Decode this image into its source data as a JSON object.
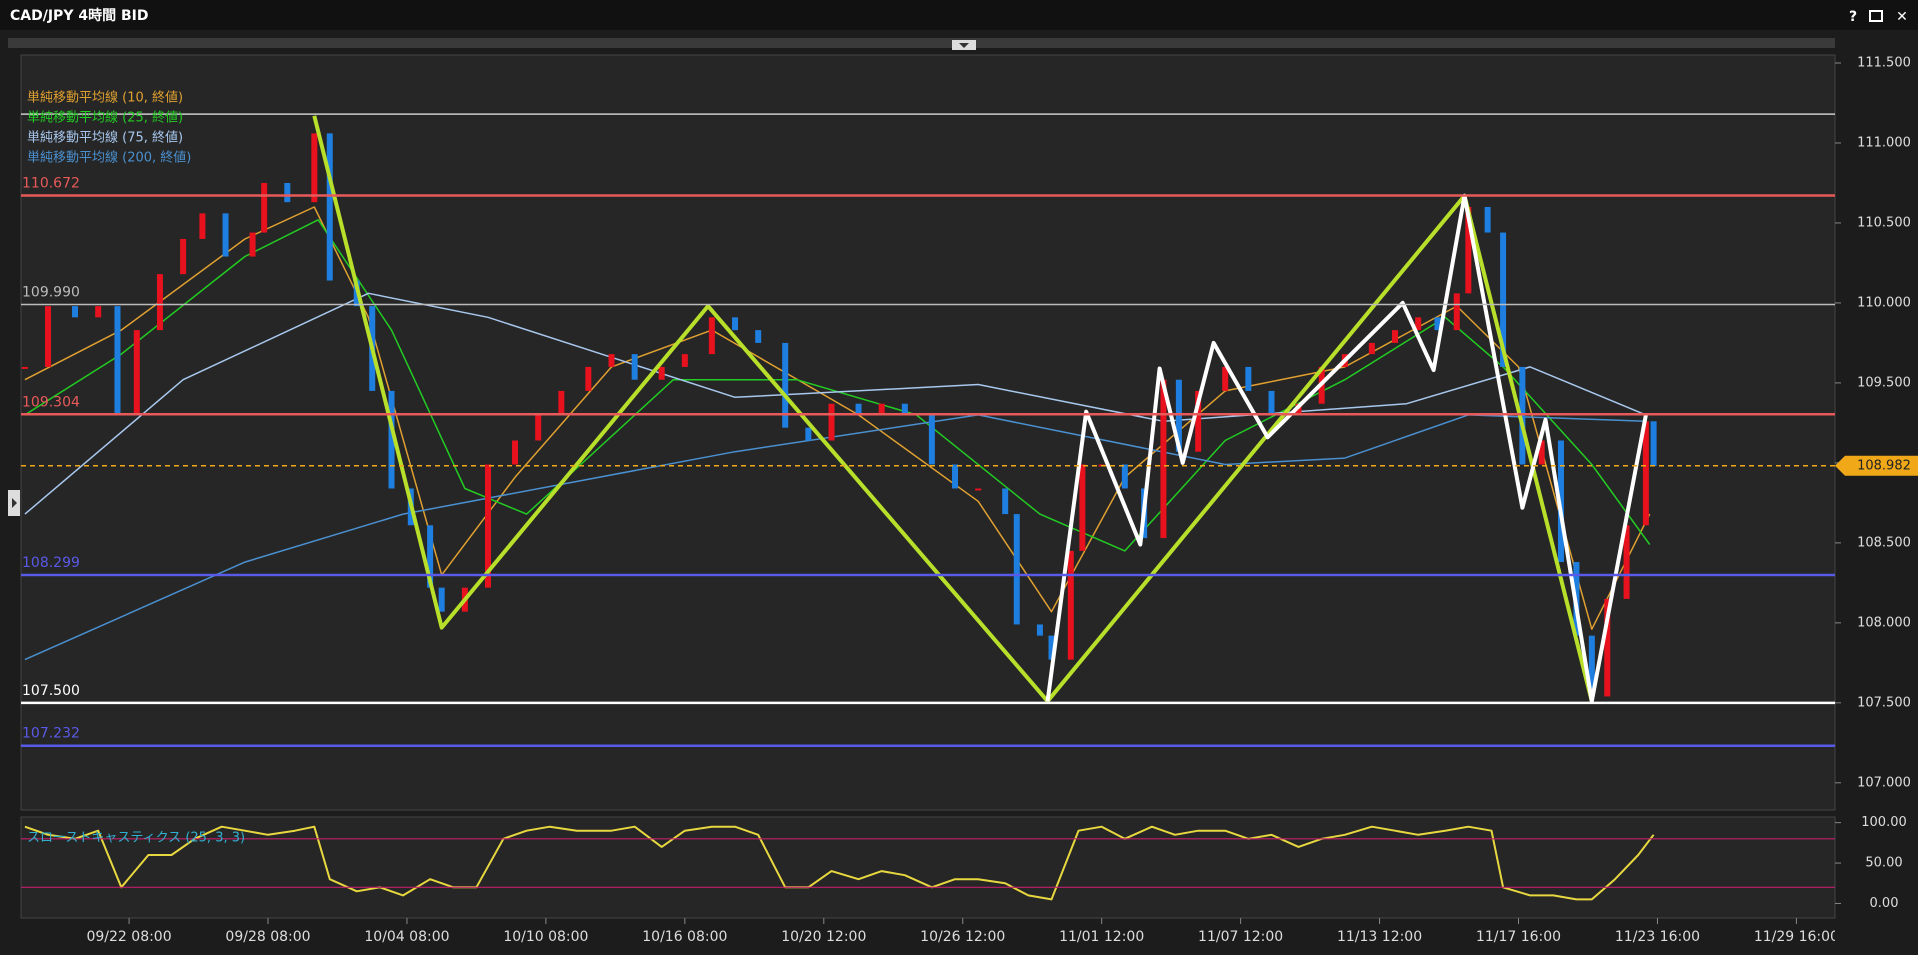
{
  "window": {
    "controls": [
      "?",
      "✕"
    ]
  },
  "chart_data": [
    {
      "type": "candlestick",
      "title": "CAD/JPY 4時間 BID",
      "xlim": [
        8,
        478
      ],
      "ylim": [
        106.83,
        111.55
      ],
      "xticks": [
        {
          "value": 36,
          "label": "09/22 08:00"
        },
        {
          "value": 72,
          "label": "09/28 08:00"
        },
        {
          "value": 108,
          "label": "10/04 08:00"
        },
        {
          "value": 144,
          "label": "10/10 08:00"
        },
        {
          "value": 180,
          "label": "10/16 08:00"
        },
        {
          "value": 216,
          "label": "10/20 12:00"
        },
        {
          "value": 252,
          "label": "10/26 12:00"
        },
        {
          "value": 288,
          "label": "11/01 12:00"
        },
        {
          "value": 324,
          "label": "11/07 12:00"
        },
        {
          "value": 360,
          "label": "11/13 12:00"
        },
        {
          "value": 396,
          "label": "11/17 16:00"
        },
        {
          "value": 432,
          "label": "11/23 16:00"
        },
        {
          "value": 468,
          "label": "11/29 16:00"
        }
      ],
      "yticks": [
        {
          "value": 107,
          "label": "107.000"
        },
        {
          "value": 107.5,
          "label": "107.500"
        },
        {
          "value": 108,
          "label": "108.000"
        },
        {
          "value": 108.5,
          "label": "108.500"
        },
        {
          "value": 109,
          "label": "109.000"
        },
        {
          "value": 109.5,
          "label": "109.500"
        },
        {
          "value": 110,
          "label": "110.000"
        },
        {
          "value": 110.5,
          "label": "110.500"
        },
        {
          "value": 111,
          "label": "111.000"
        },
        {
          "value": 111.5,
          "label": "111.500"
        }
      ],
      "up_color": "#e8121e",
      "down_color": "#1e7fe0",
      "x": [
        9,
        15,
        22,
        28,
        33,
        38,
        44,
        50,
        55,
        61,
        68,
        71,
        77,
        84,
        88,
        95,
        99,
        104,
        109,
        114,
        117,
        123,
        129,
        136,
        142,
        148,
        155,
        161,
        167,
        174,
        180,
        187,
        193,
        199,
        206,
        212,
        218,
        225,
        231,
        237,
        244,
        250,
        256,
        263,
        266,
        272,
        275,
        280,
        283,
        288,
        294,
        299,
        304,
        308,
        313,
        320,
        326,
        332,
        339,
        345,
        351,
        358,
        364,
        370,
        375,
        380,
        383,
        388,
        392,
        397,
        402,
        407,
        411,
        415,
        419,
        424,
        429,
        431
      ],
      "values": [
        109.6,
        109.98,
        109.91,
        109.98,
        109.3,
        109.83,
        110.18,
        110.4,
        110.56,
        110.29,
        110.44,
        110.75,
        110.63,
        111.06,
        110.14,
        109.98,
        109.45,
        108.84,
        108.61,
        108.22,
        108.07,
        108.22,
        108.99,
        109.14,
        109.3,
        109.45,
        109.6,
        109.68,
        109.52,
        109.6,
        109.68,
        109.91,
        109.83,
        109.75,
        109.22,
        109.14,
        109.37,
        109.3,
        109.37,
        109.3,
        108.99,
        108.84,
        108.84,
        108.68,
        107.99,
        107.92,
        107.77,
        108.45,
        108.99,
        108.99,
        108.84,
        108.53,
        109.52,
        109.07,
        109.45,
        109.6,
        109.45,
        109.3,
        109.37,
        109.6,
        109.68,
        109.75,
        109.83,
        109.91,
        109.83,
        110.06,
        110.6,
        110.44,
        109.6,
        108.99,
        109.14,
        108.38,
        107.92,
        107.54,
        108.15,
        108.61,
        109.26,
        108.98
      ],
      "series": [
        {
          "name": "単純移動平均線 (10, 終値)",
          "color": "#e0a030",
          "x": [
            9,
            34,
            66,
            84,
            98,
            117,
            136,
            161,
            187,
            225,
            256,
            275,
            294,
            320,
            351,
            380,
            396,
            415,
            430
          ],
          "values": [
            109.52,
            109.83,
            110.4,
            110.6,
            109.91,
            108.3,
            108.91,
            109.6,
            109.83,
            109.3,
            108.76,
            108.07,
            108.91,
            109.45,
            109.6,
            109.98,
            109.6,
            107.96,
            108.68
          ]
        },
        {
          "name": "単純移動平均線 (25, 終値)",
          "color": "#22cc22",
          "x": [
            9,
            34,
            66,
            85,
            104,
            123,
            139,
            177,
            209,
            240,
            272,
            294,
            320,
            351,
            377,
            392,
            415,
            430
          ],
          "values": [
            109.3,
            109.68,
            110.29,
            110.52,
            109.83,
            108.84,
            108.68,
            109.52,
            109.52,
            109.3,
            108.68,
            108.45,
            109.14,
            109.52,
            109.91,
            109.6,
            108.99,
            108.49
          ]
        },
        {
          "name": "単純移動平均線 (75, 終値)",
          "color": "#a8c8ee",
          "x": [
            9,
            50,
            98,
            129,
            193,
            256,
            304,
            367,
            399,
            429
          ],
          "values": [
            108.68,
            109.52,
            110.06,
            109.91,
            109.41,
            109.49,
            109.26,
            109.37,
            109.6,
            109.3
          ]
        },
        {
          "name": "単純移動平均線 (200, 終値)",
          "color": "#4a90d0",
          "x": [
            9,
            66,
            107,
            193,
            256,
            320,
            351,
            383,
            429
          ],
          "values": [
            107.77,
            108.38,
            108.68,
            109.07,
            109.3,
            108.99,
            109.03,
            109.3,
            109.26
          ]
        }
      ],
      "trendlines": [
        {
          "color": "#b8e02a",
          "x": [
            84,
            117,
            186,
            274,
            382,
            415
          ],
          "values": [
            111.17,
            107.97,
            109.98,
            107.51,
            110.67,
            107.51
          ]
        },
        {
          "color": "#ffffff",
          "x": [
            274,
            284,
            298,
            303,
            309,
            317,
            331,
            366,
            374,
            382,
            397,
            403,
            415,
            429
          ],
          "values": [
            107.51,
            109.32,
            108.49,
            109.59,
            109.0,
            109.75,
            109.16,
            110.0,
            109.58,
            110.67,
            108.72,
            109.27,
            107.51,
            109.3
          ]
        }
      ],
      "levels": [
        {
          "value": 111.18,
          "color": "#cccccc",
          "width": 1.5
        },
        {
          "value": 110.672,
          "label": "110.672",
          "color": "#e85a5a",
          "width": 2.5
        },
        {
          "value": 109.99,
          "label": "109.990",
          "color": "#bbbbbb",
          "width": 1.5
        },
        {
          "value": 109.304,
          "label": "109.304",
          "color": "#e85a5a",
          "width": 2.5
        },
        {
          "value": 108.299,
          "label": "108.299",
          "color": "#5a5ae8",
          "width": 2.5
        },
        {
          "value": 107.5,
          "label": "107.500",
          "color": "#ffffff",
          "width": 2.5
        },
        {
          "value": 107.232,
          "label": "107.232",
          "color": "#5a5ae8",
          "width": 2.5
        }
      ],
      "last_price": 108.982,
      "last_color": "#f0a818"
    },
    {
      "type": "line",
      "title": "スローストキャスティクス (25, 3, 3)",
      "xlim": [
        8,
        478
      ],
      "ylim": [
        -18,
        107
      ],
      "yticks": [
        {
          "value": 0,
          "label": "0.00"
        },
        {
          "value": 50,
          "label": "50.00"
        },
        {
          "value": 100,
          "label": "100.00"
        }
      ],
      "levels": [
        80,
        20
      ],
      "level_color": "#c0206a",
      "series": [
        {
          "color": "#e8d840",
          "x": [
            9,
            15,
            22,
            28,
            34,
            41,
            47,
            53,
            60,
            66,
            72,
            79,
            84,
            88,
            95,
            101,
            107,
            114,
            120,
            126,
            133,
            139,
            145,
            152,
            161,
            167,
            174,
            180,
            187,
            193,
            199,
            206,
            212,
            218,
            225,
            231,
            237,
            244,
            250,
            256,
            263,
            269,
            275,
            282,
            288,
            294,
            301,
            307,
            313,
            320,
            326,
            332,
            339,
            345,
            351,
            358,
            364,
            370,
            377,
            383,
            389,
            392,
            399,
            405,
            411,
            415,
            421,
            427,
            431
          ],
          "values": [
            95,
            85,
            80,
            90,
            20,
            60,
            60,
            80,
            95,
            90,
            85,
            90,
            95,
            30,
            15,
            20,
            10,
            30,
            20,
            20,
            80,
            90,
            95,
            90,
            90,
            95,
            70,
            90,
            95,
            95,
            85,
            20,
            20,
            40,
            30,
            40,
            35,
            20,
            30,
            30,
            25,
            10,
            5,
            90,
            95,
            80,
            95,
            85,
            90,
            90,
            80,
            85,
            70,
            80,
            85,
            95,
            90,
            85,
            90,
            95,
            90,
            20,
            10,
            10,
            5,
            5,
            30,
            60,
            85
          ]
        }
      ]
    }
  ]
}
